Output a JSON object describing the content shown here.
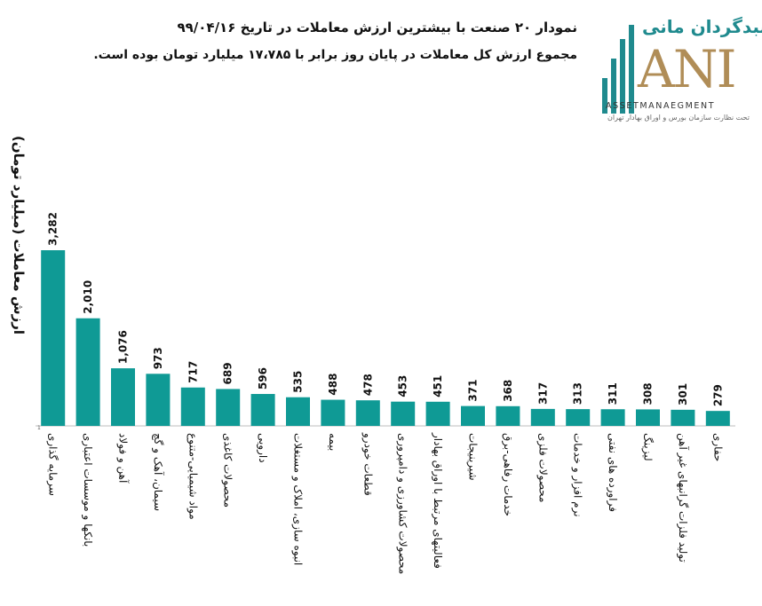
{
  "header": {
    "title_line1": "نمودار ۲۰ صنعت با بیشترین ارزش معاملات در تاریخ ۹۹/۰۴/۱۶",
    "title_line2": "مجموع ارزش کل معاملات در پایان روز برابر با ۱۷،۷۸۵ میلیارد تومان بوده است."
  },
  "logo": {
    "name": "سبدگردان مانی",
    "letters": "ANI",
    "asset": "ASSETMANAEGMENT",
    "subtitle": "تحت نظارت سازمان بورس و اوراق بهادار تهران",
    "color": "#1f8a8e",
    "accent": "#b08d57"
  },
  "chart_data": {
    "type": "bar",
    "ylabel": "ارزش معاملات (میلیارد تومان)",
    "bar_color": "#0f9a95",
    "categories": [
      "سرمایه گذاری",
      "بانکها و موسسات اعتباری",
      "آهن و فولاد",
      "سیمان، آهک و گچ",
      "مواد شیمیایی-متنوع",
      "محصولات کاغذی",
      "دارویی",
      "انبوه سازی، املاک و مستغلات",
      "بیمه",
      "قطعات خودرو",
      "محصولات کشاورزی و دامپروری",
      "فعالیتهای مرتبط با اوراق بهادار",
      "شیرینیجات",
      "خدمات رفاهی-برق",
      "محصولات فلزی",
      "نرم افزار و خدمات",
      "فراورده های نفتی",
      "لیزینگ",
      "تولید فلزات گرانبهای غیر آهن",
      "حفاری"
    ],
    "values": [
      3282,
      2010,
      1076,
      973,
      717,
      689,
      596,
      535,
      488,
      478,
      453,
      451,
      371,
      368,
      317,
      313,
      311,
      308,
      301,
      279
    ],
    "value_labels": [
      "3,282",
      "2,010",
      "1,076",
      "973",
      "717",
      "689",
      "596",
      "535",
      "488",
      "478",
      "453",
      "451",
      "371",
      "368",
      "317",
      "313",
      "311",
      "308",
      "301",
      "279"
    ],
    "ylim": [
      0,
      3282
    ],
    "grid": false,
    "axis_tick_label": "1"
  }
}
